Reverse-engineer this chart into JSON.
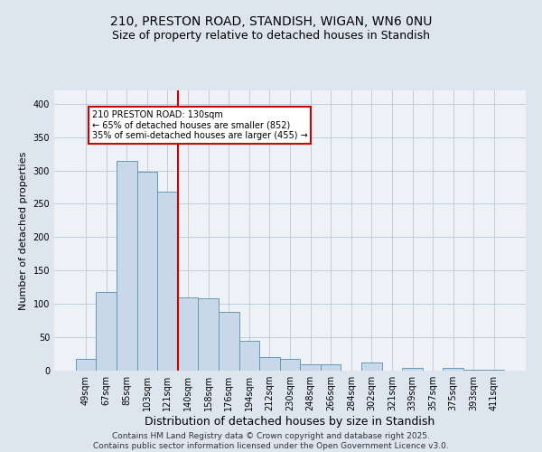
{
  "title_line1": "210, PRESTON ROAD, STANDISH, WIGAN, WN6 0NU",
  "title_line2": "Size of property relative to detached houses in Standish",
  "xlabel": "Distribution of detached houses by size in Standish",
  "ylabel": "Number of detached properties",
  "categories": [
    "49sqm",
    "67sqm",
    "85sqm",
    "103sqm",
    "121sqm",
    "140sqm",
    "158sqm",
    "176sqm",
    "194sqm",
    "212sqm",
    "230sqm",
    "248sqm",
    "266sqm",
    "284sqm",
    "302sqm",
    "321sqm",
    "339sqm",
    "357sqm",
    "375sqm",
    "393sqm",
    "411sqm"
  ],
  "values": [
    18,
    118,
    315,
    298,
    268,
    110,
    108,
    88,
    45,
    20,
    18,
    10,
    10,
    0,
    12,
    0,
    4,
    0,
    4,
    2,
    2
  ],
  "bar_color": "#c8d8e8",
  "bar_edge_color": "#6699bb",
  "vline_x": 4.5,
  "vline_color": "#cc0000",
  "annotation_text": "210 PRESTON ROAD: 130sqm\n← 65% of detached houses are smaller (852)\n35% of semi-detached houses are larger (455) →",
  "annotation_box_color": "#ffffff",
  "annotation_box_edge_color": "#cc0000",
  "ylim": [
    0,
    420
  ],
  "yticks": [
    0,
    50,
    100,
    150,
    200,
    250,
    300,
    350,
    400
  ],
  "background_color": "#dde5ee",
  "plot_background": "#eef2f7",
  "footer_text": "Contains HM Land Registry data © Crown copyright and database right 2025.\nContains public sector information licensed under the Open Government Licence v3.0.",
  "title_fontsize": 10,
  "subtitle_fontsize": 9,
  "xlabel_fontsize": 9,
  "ylabel_fontsize": 8,
  "footer_fontsize": 6.5,
  "tick_fontsize": 7,
  "annot_fontsize": 7
}
